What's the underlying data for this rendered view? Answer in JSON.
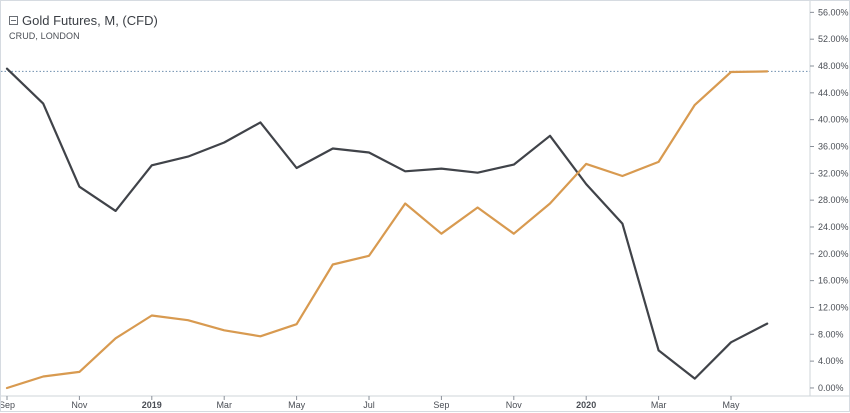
{
  "chart_data": {
    "type": "line",
    "title": "Gold Futures, M, (CFD)",
    "subtitle": "CRUD, LONDON",
    "x": [
      "2018-09",
      "2018-10",
      "2018-11",
      "2018-12",
      "2019-01",
      "2019-02",
      "2019-03",
      "2019-04",
      "2019-05",
      "2019-06",
      "2019-07",
      "2019-08",
      "2019-09",
      "2019-10",
      "2019-11",
      "2019-12",
      "2020-01",
      "2020-02",
      "2020-03",
      "2020-04",
      "2020-05",
      "2020-06"
    ],
    "x_tick_labels": [
      {
        "x": "2018-09",
        "label": "Sep",
        "bold": false
      },
      {
        "x": "2018-11",
        "label": "Nov",
        "bold": false
      },
      {
        "x": "2019-01",
        "label": "2019",
        "bold": true
      },
      {
        "x": "2019-03",
        "label": "Mar",
        "bold": false
      },
      {
        "x": "2019-05",
        "label": "May",
        "bold": false
      },
      {
        "x": "2019-07",
        "label": "Jul",
        "bold": false
      },
      {
        "x": "2019-09",
        "label": "Sep",
        "bold": false
      },
      {
        "x": "2019-11",
        "label": "Nov",
        "bold": false
      },
      {
        "x": "2020-01",
        "label": "2020",
        "bold": true
      },
      {
        "x": "2020-03",
        "label": "Mar",
        "bold": false
      },
      {
        "x": "2020-05",
        "label": "May",
        "bold": false
      }
    ],
    "y_ticks": [
      0,
      4,
      8,
      12,
      16,
      20,
      24,
      28,
      32,
      36,
      40,
      44,
      48,
      52,
      56
    ],
    "y_tick_suffix": "%",
    "y_tick_decimals": 2,
    "ylim": [
      -1.2,
      56.5
    ],
    "reference_line": 47.2,
    "grid": false,
    "series": [
      {
        "color": "#404349",
        "values": [
          47.6,
          42.4,
          30.0,
          26.4,
          33.2,
          34.5,
          36.6,
          39.6,
          32.8,
          35.7,
          35.1,
          32.3,
          32.7,
          32.1,
          33.3,
          37.6,
          30.4,
          24.5,
          5.6,
          1.4,
          6.8,
          9.6
        ]
      },
      {
        "color": "#d89a50",
        "values": [
          0.0,
          1.7,
          2.4,
          7.4,
          10.8,
          10.1,
          8.6,
          7.7,
          9.5,
          18.4,
          19.7,
          27.5,
          23.0,
          26.9,
          23.0,
          27.5,
          33.4,
          31.6,
          33.7,
          42.2,
          47.1,
          47.2
        ]
      }
    ]
  }
}
